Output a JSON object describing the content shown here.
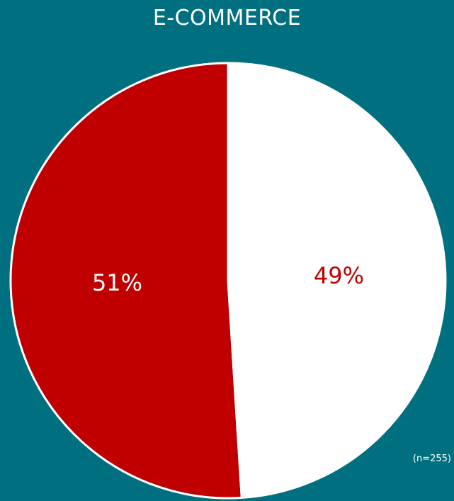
{
  "chart_data": {
    "type": "pie",
    "title": "E-COMMERCE",
    "categories": [
      "",
      ""
    ],
    "values": [
      51,
      49
    ],
    "labels": [
      "51%",
      "49%"
    ],
    "colors": [
      "#c00000",
      "#ffffff"
    ],
    "label_colors": [
      "#ffffff",
      "#c00000"
    ],
    "note": "(n=255)",
    "legend": "none"
  },
  "colors": {
    "background": "#006f80",
    "slice_border": "#ffffff"
  }
}
